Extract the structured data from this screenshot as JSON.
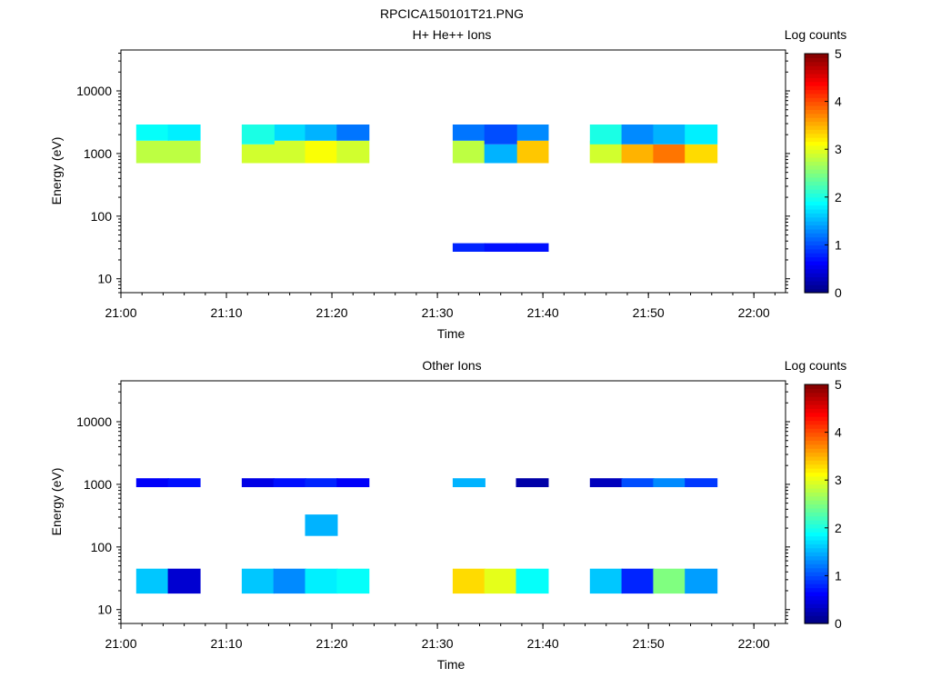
{
  "figure_title": "RPCICA150101T21.PNG",
  "colorbar_ticks": [
    "0",
    "1",
    "2",
    "3",
    "4",
    "5"
  ],
  "chart_data": [
    {
      "type": "heatmap",
      "title": "H+ He++ Ions",
      "xlabel": "Time",
      "ylabel": "Energy (eV)",
      "colorbar_label": "Log counts",
      "colorbar_range": [
        0,
        5
      ],
      "y_scale": "log",
      "ylim": [
        6,
        45000
      ],
      "xlim": [
        "21:00",
        "22:03"
      ],
      "x_ticks": [
        "21:00",
        "21:10",
        "21:20",
        "21:30",
        "21:40",
        "21:50",
        "22:00"
      ],
      "y_ticks": [
        "10",
        "100",
        "1000",
        "10000"
      ],
      "time_bins": [
        "21:03",
        "21:06",
        "21:13",
        "21:16",
        "21:19",
        "21:22",
        "21:33",
        "21:36",
        "21:39",
        "21:46",
        "21:49",
        "21:52",
        "21:55"
      ],
      "energy_bands_eV": [
        {
          "lo": 700,
          "hi": 1600,
          "levels": [
            2.8,
            2.8,
            0,
            2.9,
            3.1,
            2.9,
            2.8,
            0,
            3.4,
            2.9,
            0,
            0,
            0
          ]
        },
        {
          "lo": 1600,
          "hi": 2900,
          "levels": [
            1.9,
            1.8,
            0,
            1.7,
            1.5,
            1.2,
            1.2,
            0,
            1.3,
            0,
            1.3,
            0,
            0
          ]
        },
        {
          "lo": 700,
          "hi": 1400,
          "levels": [
            0,
            0,
            2.9,
            0,
            0,
            0,
            0,
            1.5,
            0,
            2.9,
            3.5,
            3.8,
            3.3
          ]
        },
        {
          "lo": 1400,
          "hi": 2900,
          "levels": [
            0,
            0,
            2.0,
            0,
            0,
            0,
            0,
            1.0,
            0,
            2.0,
            1.3,
            1.5,
            1.8
          ]
        },
        {
          "lo": 27,
          "hi": 37,
          "levels": [
            0,
            0,
            0,
            0,
            0,
            0,
            0.8,
            0.7,
            0.7,
            0,
            0,
            0,
            0
          ]
        }
      ]
    },
    {
      "type": "heatmap",
      "title": "Other Ions",
      "xlabel": "Time",
      "ylabel": "Energy (eV)",
      "colorbar_label": "Log counts",
      "colorbar_range": [
        0,
        5
      ],
      "y_scale": "log",
      "ylim": [
        6,
        45000
      ],
      "xlim": [
        "21:00",
        "22:03"
      ],
      "x_ticks": [
        "21:00",
        "21:10",
        "21:20",
        "21:30",
        "21:40",
        "21:50",
        "22:00"
      ],
      "y_ticks": [
        "10",
        "100",
        "1000",
        "10000"
      ],
      "time_bins": [
        "21:03",
        "21:06",
        "21:13",
        "21:16",
        "21:19",
        "21:22",
        "21:33",
        "21:36",
        "21:39",
        "21:46",
        "21:49",
        "21:52",
        "21:55"
      ],
      "energy_bands_eV": [
        {
          "lo": 18,
          "hi": 45,
          "levels": [
            1.6,
            0.4,
            1.6,
            1.3,
            1.8,
            1.9,
            3.3,
            3.0,
            1.9,
            1.6,
            0.8,
            2.5,
            1.4
          ]
        },
        {
          "lo": 900,
          "hi": 1250,
          "levels": [
            0.6,
            0.7,
            0.5,
            0.7,
            0.8,
            0.6,
            1.5,
            0,
            0.2,
            0.3,
            1.0,
            1.3,
            0.9
          ]
        },
        {
          "lo": 150,
          "hi": 330,
          "levels": [
            0,
            0,
            0,
            0,
            1.5,
            0,
            0,
            0,
            0,
            0,
            0,
            0,
            0
          ]
        }
      ]
    }
  ]
}
